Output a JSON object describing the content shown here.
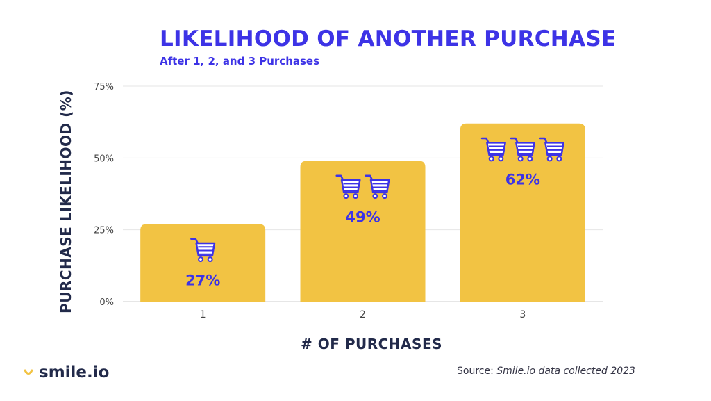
{
  "header": {
    "title": "LIKELIHOOD OF ANOTHER PURCHASE",
    "subtitle": "After 1, 2, and 3 Purchases"
  },
  "footer": {
    "brand": "smile.io",
    "source_prefix": "Source: ",
    "source_text": "Smile.io data collected 2023"
  },
  "colors": {
    "accent": "#3d33e6",
    "bar": "#f2c343",
    "text_dark": "#222a4a",
    "grid": "#e6e6e6"
  },
  "icons": {
    "bar_icon": "shopping-cart-icon",
    "brand_icon": "smile-icon"
  },
  "chart_data": {
    "type": "bar",
    "title": "LIKELIHOOD OF ANOTHER PURCHASE",
    "subtitle": "After 1, 2, and 3 Purchases",
    "xlabel": "# OF PURCHASES",
    "ylabel": "PURCHASE LIKELIHOOD (%)",
    "categories": [
      "1",
      "2",
      "3"
    ],
    "values": [
      27,
      49,
      62
    ],
    "data_labels": [
      "27%",
      "49%",
      "62%"
    ],
    "icon_counts": [
      1,
      2,
      3
    ],
    "ylim": [
      0,
      75
    ],
    "yticks": [
      0,
      25,
      50,
      75
    ],
    "ytick_labels": [
      "0%",
      "25%",
      "50%",
      "75%"
    ],
    "grid": true
  }
}
